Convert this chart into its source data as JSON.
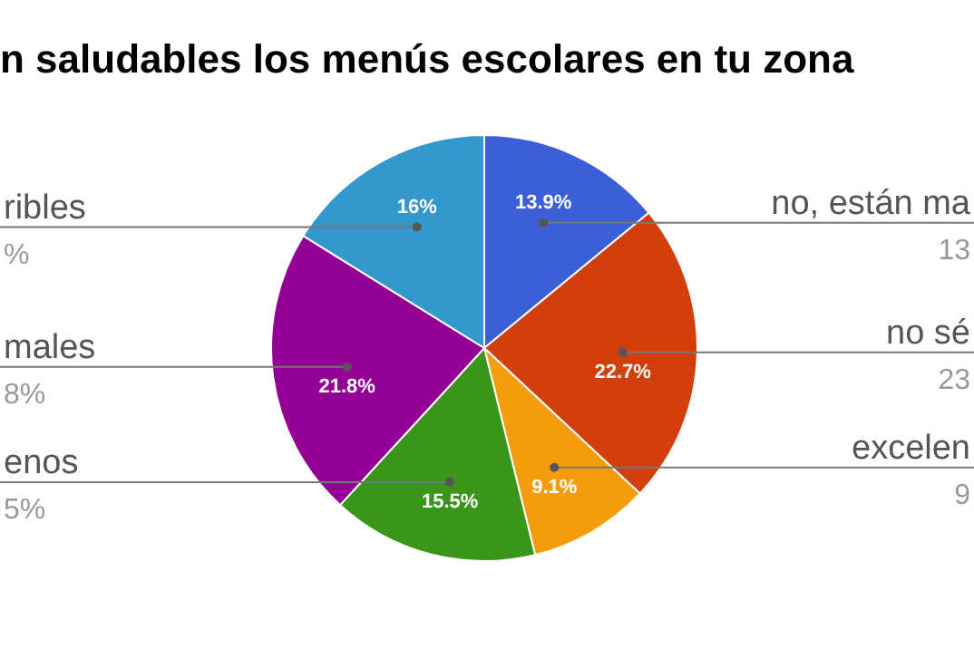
{
  "chart_data": {
    "type": "pie",
    "title": "n saludables los menús escolares en tu zona",
    "categories": [
      "no, están ma",
      "no sé",
      "excelen",
      "enos",
      "males",
      "ribles"
    ],
    "values": [
      13.9,
      22.7,
      9.1,
      15.5,
      21.8,
      16
    ],
    "colors": [
      "#3b5fd6",
      "#d23f0c",
      "#f59c0a",
      "#3a961a",
      "#940096",
      "#3399cc"
    ],
    "value_labels": [
      "13.9%",
      "22.7%",
      "9.1%",
      "15.5%",
      "21.8%",
      "16%"
    ],
    "legend": false,
    "annotations": [
      {
        "text": "13",
        "x": "no, están ma"
      },
      {
        "text": "23",
        "x": "no sé"
      },
      {
        "text": "9",
        "x": "excelen"
      },
      {
        "text": "5%",
        "x": "enos"
      },
      {
        "text": "8%",
        "x": "males"
      },
      {
        "text": "%",
        "x": "ribles"
      }
    ]
  }
}
